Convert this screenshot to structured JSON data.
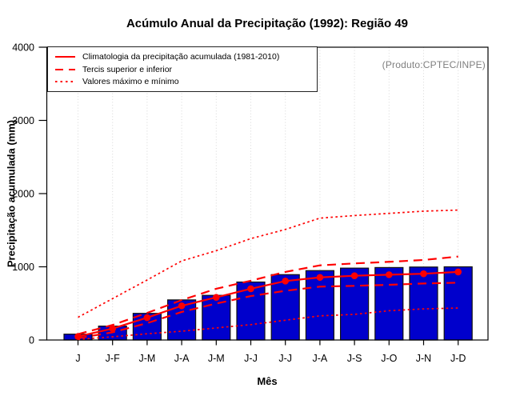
{
  "chart_data": {
    "type": "bar",
    "title": "Acúmulo Anual da Precipitação (1992): Região 49",
    "xlabel": "Mês",
    "ylabel": "Precipitação acumulada (mm)",
    "ylim": [
      0,
      4000
    ],
    "yticks": [
      0,
      1000,
      2000,
      3000,
      4000
    ],
    "categories": [
      "J",
      "J-F",
      "J-M",
      "J-A",
      "J-M",
      "J-J",
      "J-J",
      "J-A",
      "J-S",
      "J-O",
      "J-N",
      "J-D"
    ],
    "bars": {
      "values": [
        80,
        190,
        364,
        548,
        610,
        792,
        893,
        948,
        982,
        990,
        997,
        1000
      ]
    },
    "series": [
      {
        "name": "Climatologia da precipitação acumulada (1981-2010)",
        "style": "solid",
        "markers": true,
        "values": [
          48,
          156,
          305,
          467,
          583,
          700,
          805,
          855,
          878,
          892,
          905,
          930
        ]
      },
      {
        "name": "Tercil superior",
        "style": "dashed",
        "markers": false,
        "values": [
          80,
          205,
          370,
          545,
          700,
          810,
          930,
          1020,
          1046,
          1068,
          1093,
          1140
        ]
      },
      {
        "name": "Tercil inferior",
        "style": "dashed",
        "markers": false,
        "values": [
          25,
          105,
          230,
          383,
          498,
          600,
          672,
          729,
          740,
          754,
          772,
          783
        ]
      },
      {
        "name": "Valor máximo",
        "style": "dotted",
        "markers": false,
        "values": [
          310,
          565,
          820,
          1080,
          1220,
          1385,
          1510,
          1665,
          1700,
          1730,
          1760,
          1775
        ]
      },
      {
        "name": "Valor mínimo",
        "style": "dotted",
        "markers": false,
        "values": [
          8,
          44,
          85,
          120,
          165,
          210,
          270,
          330,
          350,
          400,
          425,
          437
        ]
      }
    ],
    "grid": "vertical-dotted",
    "legend_position": "top-left"
  },
  "legend": {
    "items": [
      {
        "label": "Climatologia da precipitação acumulada (1981-2010)",
        "style": "solid"
      },
      {
        "label": "Tercis superior e inferior",
        "style": "dashed"
      },
      {
        "label": "Valores máximo e mínimo",
        "style": "dotted"
      }
    ]
  },
  "annotations": {
    "produto": "(Produto:CPTEC/INPE)"
  },
  "colors": {
    "bar_fill": "#0000CC",
    "bar_border": "#121212",
    "line": "#FF0000",
    "grid": "#D8D8D8",
    "axis": "#000000",
    "produto_text": "#7F7F7F"
  }
}
